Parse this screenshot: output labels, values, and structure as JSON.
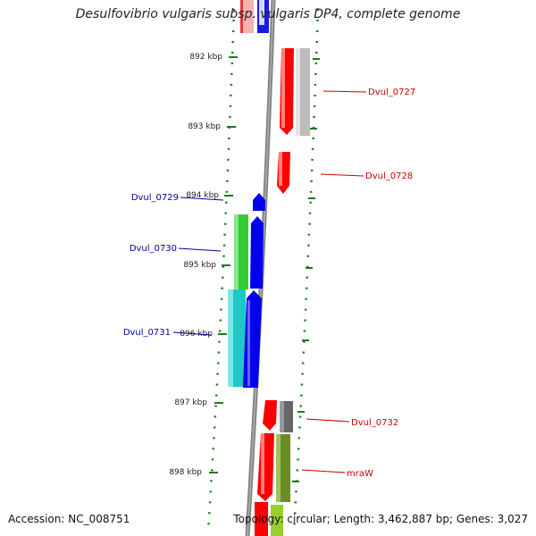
{
  "title": "Desulfovibrio vulgaris subsp. vulgaris DP4, complete genome",
  "footer": {
    "accession": "Accession: NC_008751",
    "topology": "Topology: circular; Length: 3,462,887 bp; Genes: 3,027"
  },
  "colors": {
    "forward_label": "#cc0000",
    "reverse_label": "#000099",
    "backbone": "#808080",
    "tick": "#1a7a1a"
  },
  "ticks": [
    {
      "label": "892 kbp"
    },
    {
      "label": "893 kbp"
    },
    {
      "label": "894 kbp"
    },
    {
      "label": "895 kbp"
    },
    {
      "label": "896 kbp"
    },
    {
      "label": "897 kbp"
    },
    {
      "label": "898 kbp"
    }
  ],
  "gene_labels": [
    {
      "text": "Dvul_0727",
      "strand": "forward"
    },
    {
      "text": "Dvul_0728",
      "strand": "forward"
    },
    {
      "text": "Dvul_0729",
      "strand": "reverse"
    },
    {
      "text": "Dvul_0730",
      "strand": "reverse"
    },
    {
      "text": "Dvul_0731",
      "strand": "reverse"
    },
    {
      "text": "Dvul_0732",
      "strand": "forward"
    },
    {
      "text": "mraW",
      "strand": "forward"
    }
  ]
}
